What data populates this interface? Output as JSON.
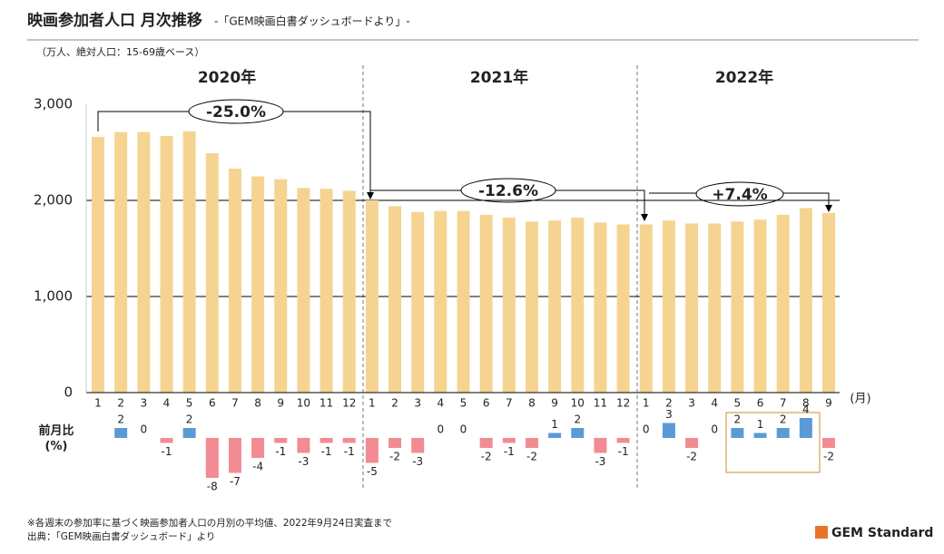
{
  "header": {
    "title": "映画参加者人口 月次推移",
    "subtitle": "-「GEM映画白書ダッシュボードより」-",
    "note": "（万人、絶対人口：15-69歳ベース）"
  },
  "chart_data": [
    {
      "type": "bar",
      "color": "#f5d491",
      "groups": [
        "2020年",
        "2021年",
        "2022年"
      ],
      "categories": [
        "1",
        "2",
        "3",
        "4",
        "5",
        "6",
        "7",
        "8",
        "9",
        "10",
        "11",
        "12",
        "1",
        "2",
        "3",
        "4",
        "5",
        "6",
        "7",
        "8",
        "9",
        "10",
        "11",
        "12",
        "1",
        "2",
        "3",
        "4",
        "5",
        "6",
        "7",
        "8",
        "9"
      ],
      "values": [
        2660,
        2710,
        2710,
        2670,
        2720,
        2490,
        2330,
        2250,
        2220,
        2130,
        2120,
        2100,
        2000,
        1940,
        1880,
        1890,
        1890,
        1850,
        1820,
        1780,
        1790,
        1820,
        1770,
        1750,
        1750,
        1790,
        1760,
        1760,
        1780,
        1800,
        1850,
        1920,
        1870
      ],
      "x_label": "(月)",
      "ylim": [
        0,
        3000
      ],
      "yticks": [
        0,
        {
          "value": 1000,
          "label": "1,000"
        },
        {
          "value": 2000,
          "label": "2,000"
        },
        {
          "value": 3000,
          "label": "3,000"
        }
      ],
      "annotations": [
        {
          "text": "-25.0%",
          "color": "#c0143c"
        },
        {
          "text": "-12.6%",
          "color": "#f0808c"
        },
        {
          "text": "+7.4%",
          "color": "#4a90d0"
        }
      ]
    },
    {
      "type": "bar",
      "y_label": "前月比\n(%)",
      "color": "#5b9bd5",
      "negative_color": "#f28b93",
      "values": [
        null,
        2,
        0,
        -1,
        2,
        -8,
        -7,
        -4,
        -1,
        -3,
        -1,
        -1,
        -5,
        -2,
        -3,
        0,
        0,
        -2,
        -1,
        -2,
        1,
        2,
        -3,
        -1,
        0,
        3,
        -2,
        0,
        2,
        1,
        2,
        4,
        -2
      ]
    }
  ],
  "footer": {
    "notes": [
      "※各週末の参加率に基づく映画参加者人口の月別の平均値、2022年9月24日実査まで",
      "出典：「GEM映画白書ダッシュボード」より"
    ],
    "logo": "GEM Standard"
  }
}
